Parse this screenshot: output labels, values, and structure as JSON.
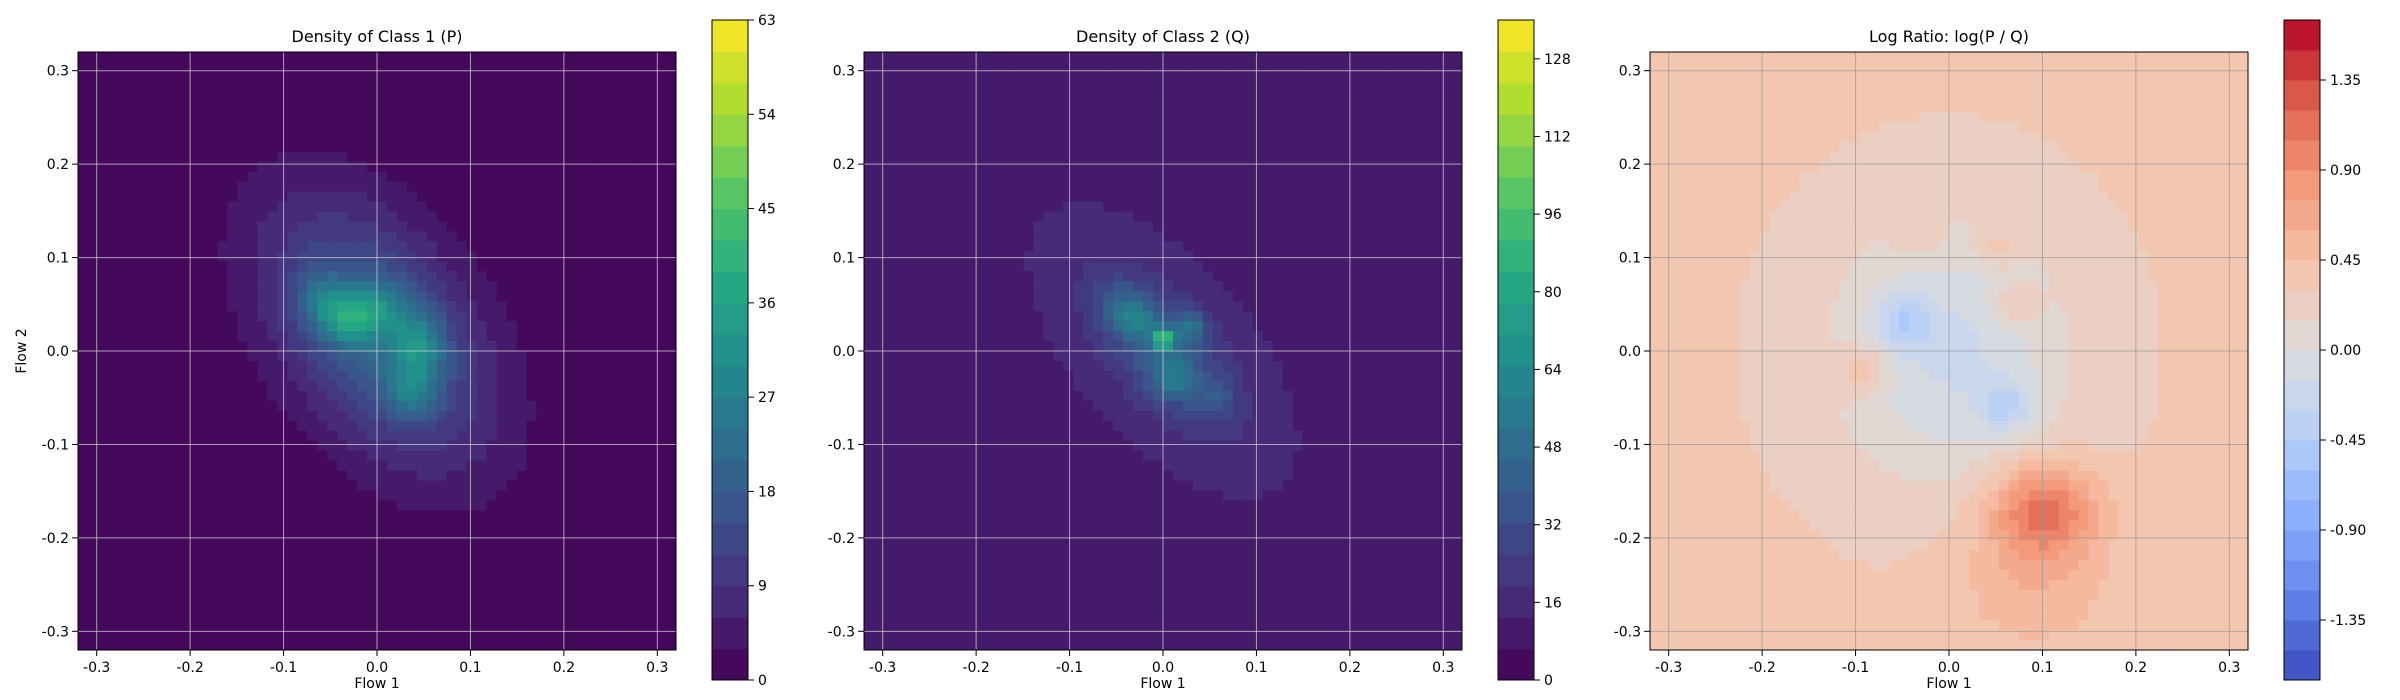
{
  "chart_data": [
    {
      "type": "heatmap",
      "title": "Density of Class 1 (P)",
      "xlabel": "Flow 1",
      "ylabel": "Flow 2",
      "xlim": [
        -0.32,
        0.32
      ],
      "ylim": [
        -0.32,
        0.32
      ],
      "xticks": [
        -0.3,
        -0.2,
        -0.1,
        0.0,
        0.1,
        0.2,
        0.3
      ],
      "yticks": [
        -0.3,
        -0.2,
        -0.1,
        0.0,
        0.1,
        0.2,
        0.3
      ],
      "grid": true,
      "colormap": "viridis",
      "colorbar": {
        "min": 0,
        "max": 63,
        "ticks": [
          0,
          9,
          18,
          27,
          36,
          45,
          54,
          63
        ]
      },
      "background_value": 0,
      "blobs": [
        {
          "x": 0.0,
          "y": 0.02,
          "sx": 0.085,
          "sy": 0.1,
          "rho": -0.45,
          "v": 20
        },
        {
          "x": -0.03,
          "y": 0.035,
          "sx": 0.025,
          "sy": 0.02,
          "rho": 0.0,
          "v": 20
        },
        {
          "x": 0.045,
          "y": 0.005,
          "sx": 0.02,
          "sy": 0.025,
          "rho": 0.0,
          "v": 16
        },
        {
          "x": 0.035,
          "y": -0.045,
          "sx": 0.02,
          "sy": 0.02,
          "rho": 0.0,
          "v": 12
        },
        {
          "x": -0.06,
          "y": 0.06,
          "sx": 0.02,
          "sy": 0.02,
          "rho": 0.0,
          "v": 8
        },
        {
          "x": 0.01,
          "y": 0.05,
          "sx": 0.02,
          "sy": 0.02,
          "rho": 0.0,
          "v": 8
        }
      ]
    },
    {
      "type": "heatmap",
      "title": "Density of Class 2 (Q)",
      "xlabel": "Flow 1",
      "ylabel": "",
      "xlim": [
        -0.32,
        0.32
      ],
      "ylim": [
        -0.32,
        0.32
      ],
      "xticks": [
        -0.3,
        -0.2,
        -0.1,
        0.0,
        0.1,
        0.2,
        0.3
      ],
      "yticks": [
        -0.3,
        -0.2,
        -0.1,
        0.0,
        0.1,
        0.2,
        0.3
      ],
      "grid": true,
      "colormap": "viridis",
      "colorbar": {
        "min": 0,
        "max": 136,
        "ticks": [
          0,
          16,
          32,
          48,
          64,
          80,
          96,
          112,
          128
        ]
      },
      "background_value": 12,
      "blobs": [
        {
          "x": 0.0,
          "y": 0.0,
          "sx": 0.055,
          "sy": 0.06,
          "rho": -0.6,
          "v": 30
        },
        {
          "x": 0.0,
          "y": 0.012,
          "sx": 0.008,
          "sy": 0.008,
          "rho": 0.0,
          "v": 60
        },
        {
          "x": -0.03,
          "y": 0.035,
          "sx": 0.015,
          "sy": 0.015,
          "rho": 0.0,
          "v": 25
        },
        {
          "x": 0.03,
          "y": 0.025,
          "sx": 0.012,
          "sy": 0.012,
          "rho": 0.0,
          "v": 25
        },
        {
          "x": 0.01,
          "y": -0.03,
          "sx": 0.015,
          "sy": 0.015,
          "rho": 0.0,
          "v": 20
        },
        {
          "x": -0.05,
          "y": 0.05,
          "sx": 0.015,
          "sy": 0.015,
          "rho": 0.0,
          "v": 12
        },
        {
          "x": 0.06,
          "y": -0.05,
          "sx": 0.012,
          "sy": 0.012,
          "rho": 0.0,
          "v": 12
        }
      ]
    },
    {
      "type": "heatmap",
      "title": "Log Ratio: log(P / Q)",
      "xlabel": "Flow 1",
      "ylabel": "",
      "xlim": [
        -0.32,
        0.32
      ],
      "ylim": [
        -0.32,
        0.32
      ],
      "xticks": [
        -0.3,
        -0.2,
        -0.1,
        0.0,
        0.1,
        0.2,
        0.3
      ],
      "yticks": [
        -0.3,
        -0.2,
        -0.1,
        0.0,
        0.1,
        0.2,
        0.3
      ],
      "grid": true,
      "colormap": "coolwarm",
      "colorbar": {
        "min": -1.65,
        "max": 1.65,
        "ticks": [
          -1.35,
          -0.9,
          -0.45,
          0.0,
          0.45,
          0.9,
          1.35
        ]
      },
      "background_value": 0.32,
      "blobs": [
        {
          "x": 0.0,
          "y": 0.0,
          "sx": 0.09,
          "sy": 0.1,
          "rho": 0.0,
          "v": -0.5
        },
        {
          "x": -0.05,
          "y": 0.03,
          "sx": 0.02,
          "sy": 0.02,
          "rho": 0.0,
          "v": -0.4
        },
        {
          "x": 0.06,
          "y": -0.06,
          "sx": 0.02,
          "sy": 0.02,
          "rho": 0.0,
          "v": -0.4
        },
        {
          "x": 0.1,
          "y": -0.17,
          "sx": 0.04,
          "sy": 0.035,
          "rho": 0.0,
          "v": 0.8
        },
        {
          "x": 0.09,
          "y": -0.25,
          "sx": 0.06,
          "sy": 0.05,
          "rho": 0.0,
          "v": 0.25
        },
        {
          "x": 0.07,
          "y": 0.05,
          "sx": 0.02,
          "sy": 0.015,
          "rho": 0.0,
          "v": 0.3
        },
        {
          "x": -0.09,
          "y": -0.02,
          "sx": 0.02,
          "sy": 0.02,
          "rho": 0.0,
          "v": 0.3
        },
        {
          "x": 0.05,
          "y": 0.11,
          "sx": 0.02,
          "sy": 0.015,
          "rho": 0.0,
          "v": 0.25
        },
        {
          "x": -0.03,
          "y": 0.12,
          "sx": 0.02,
          "sy": 0.015,
          "rho": 0.0,
          "v": 0.2
        }
      ]
    }
  ]
}
